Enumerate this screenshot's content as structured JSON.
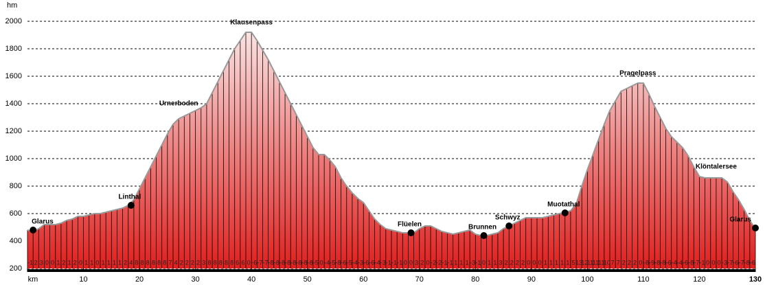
{
  "chart_data": {
    "type": "area",
    "y_label": "hm",
    "xlim": [
      0,
      130
    ],
    "ylim": [
      200,
      2000
    ],
    "yticks": [
      200,
      400,
      600,
      800,
      1000,
      1200,
      1400,
      1600,
      1800,
      2000
    ],
    "xticks": [
      {
        "value": 0,
        "label": "km"
      },
      10,
      20,
      30,
      40,
      50,
      60,
      70,
      80,
      90,
      100,
      110,
      120,
      130
    ],
    "grid": true,
    "color_top": "#fbe3e3",
    "color_bottom": "#e0201e",
    "line_color": "#999999",
    "x": [
      0,
      1,
      2,
      3,
      4,
      5,
      6,
      7,
      8,
      9,
      10,
      11,
      12,
      13,
      14,
      15,
      16,
      17,
      18,
      19,
      20,
      21,
      22,
      23,
      24,
      25,
      26,
      27,
      28,
      29,
      30,
      31,
      32,
      33,
      34,
      35,
      36,
      37,
      38,
      39,
      40,
      41,
      42,
      43,
      44,
      45,
      46,
      47,
      48,
      49,
      50,
      51,
      52,
      53,
      54,
      55,
      56,
      57,
      58,
      59,
      60,
      61,
      62,
      63,
      64,
      65,
      66,
      67,
      68,
      69,
      70,
      71,
      72,
      73,
      74,
      75,
      76,
      77,
      78,
      79,
      80,
      81,
      82,
      83,
      84,
      85,
      86,
      87,
      88,
      89,
      90,
      91,
      92,
      93,
      94,
      95,
      96,
      97,
      98,
      99,
      100,
      101,
      102,
      103,
      104,
      105,
      106,
      107,
      108,
      109,
      110,
      111,
      112,
      113,
      114,
      115,
      116,
      117,
      118,
      119,
      120,
      121,
      122,
      123,
      124,
      125,
      126,
      127,
      128,
      129,
      130
    ],
    "values": [
      480,
      470,
      490,
      520,
      520,
      520,
      530,
      550,
      560,
      580,
      580,
      590,
      600,
      600,
      610,
      620,
      630,
      640,
      660,
      700,
      780,
      860,
      940,
      1020,
      1100,
      1180,
      1250,
      1290,
      1310,
      1330,
      1350,
      1370,
      1400,
      1480,
      1560,
      1640,
      1720,
      1800,
      1860,
      1920,
      1920,
      1860,
      1790,
      1720,
      1640,
      1560,
      1480,
      1400,
      1320,
      1240,
      1160,
      1080,
      1030,
      1030,
      990,
      940,
      860,
      800,
      750,
      710,
      680,
      620,
      560,
      520,
      490,
      480,
      470,
      460,
      460,
      460,
      490,
      510,
      510,
      490,
      470,
      460,
      450,
      460,
      470,
      480,
      450,
      440,
      440,
      450,
      460,
      490,
      510,
      530,
      550,
      570,
      570,
      570,
      570,
      580,
      590,
      600,
      610,
      620,
      670,
      800,
      920,
      1030,
      1140,
      1250,
      1350,
      1420,
      1490,
      1510,
      1530,
      1550,
      1550,
      1470,
      1380,
      1300,
      1220,
      1160,
      1120,
      1080,
      1020,
      940,
      870,
      860,
      860,
      860,
      860,
      830,
      760,
      700,
      630,
      550,
      490
    ],
    "gradients": [
      -1,
      2,
      3,
      0,
      0,
      1,
      2,
      1,
      2,
      0,
      1,
      1,
      0,
      1,
      1,
      1,
      1,
      2,
      4,
      8,
      8,
      8,
      8,
      8,
      8,
      7,
      4,
      2,
      2,
      2,
      2,
      3,
      8,
      8,
      8,
      8,
      8,
      6,
      6,
      0,
      -6,
      -7,
      -7,
      -8,
      -8,
      -8,
      -8,
      -8,
      -8,
      -8,
      -8,
      -5,
      0,
      -4,
      -5,
      -8,
      -6,
      -5,
      -4,
      -3,
      -6,
      -6,
      -4,
      -3,
      -1,
      -1,
      -1,
      0,
      0,
      3,
      2,
      0,
      -2,
      -2,
      -1,
      -1,
      1,
      1,
      1,
      -3,
      -1,
      0,
      1,
      1,
      3,
      2,
      2,
      2,
      2,
      0,
      0,
      0,
      1,
      1,
      1,
      1,
      1,
      5,
      13,
      12,
      11,
      11,
      11,
      10,
      7,
      7,
      2,
      2,
      2,
      0,
      -8,
      -9,
      -8,
      -8,
      -6,
      -4,
      -4,
      -6,
      -8,
      -7,
      -1,
      0,
      0,
      0,
      -3,
      -7,
      -6,
      -7,
      -8,
      -6
    ],
    "places": [
      {
        "label": "Glarus",
        "km": 1,
        "elevation": 480,
        "marker": true
      },
      {
        "label": "Linthal",
        "km": 18.5,
        "elevation": 660,
        "marker": true
      },
      {
        "label": "Urnerboden",
        "km": 27,
        "elevation": 1340,
        "marker": false
      },
      {
        "label": "Klausenpass",
        "km": 40,
        "elevation": 1930,
        "marker": false
      },
      {
        "label": "Flüelen",
        "km": 68.5,
        "elevation": 460,
        "marker": true
      },
      {
        "label": "Brunnen",
        "km": 81.5,
        "elevation": 440,
        "marker": true
      },
      {
        "label": "Schwyz",
        "km": 86,
        "elevation": 510,
        "marker": true
      },
      {
        "label": "Muotathal",
        "km": 96,
        "elevation": 605,
        "marker": true
      },
      {
        "label": "Pragelpass",
        "km": 109,
        "elevation": 1560,
        "marker": false
      },
      {
        "label": "Klöntalersee",
        "km": 123,
        "elevation": 880,
        "marker": false
      },
      {
        "label": "Glarus",
        "km": 130,
        "elevation": 495,
        "marker": true
      }
    ]
  }
}
